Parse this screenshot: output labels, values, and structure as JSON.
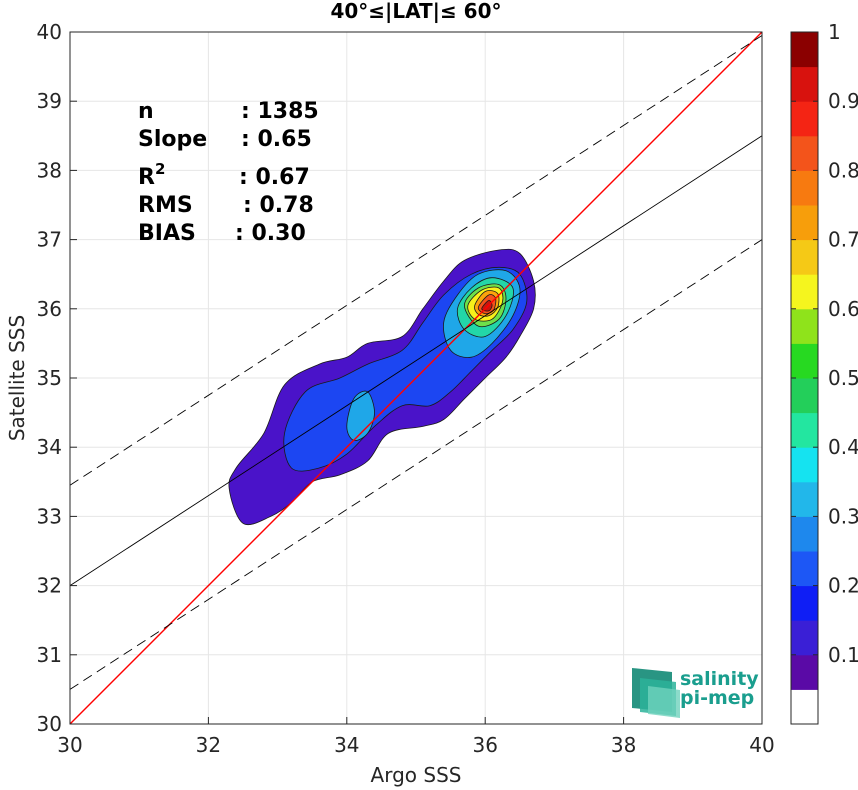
{
  "chart_data": {
    "type": "heatmap",
    "title": "40°≤|LAT|≤ 60°",
    "xlabel": "Argo SSS",
    "ylabel": "Satellite SSS",
    "xlim": [
      30,
      40
    ],
    "ylim": [
      30,
      40
    ],
    "xticks": [
      "30",
      "32",
      "34",
      "36",
      "38",
      "40"
    ],
    "yticks": [
      "30",
      "31",
      "32",
      "33",
      "34",
      "35",
      "36",
      "37",
      "38",
      "39",
      "40"
    ],
    "grid": true,
    "stats": [
      {
        "label": "n",
        "sep": ": ",
        "value": "1385"
      },
      {
        "label": "Slope",
        "sep": ": ",
        "value": "0.65"
      },
      {
        "label": "R",
        "sup": "2",
        "sep": ": ",
        "value": "0.67"
      },
      {
        "label": "RMS",
        "sep": ": ",
        "value": "0.78"
      },
      {
        "label": "BIAS",
        "sep": ": ",
        "value": "0.30"
      }
    ],
    "lines": {
      "one_to_one": {
        "x": [
          30,
          40
        ],
        "y": [
          30,
          40
        ],
        "color": "#ff0000"
      },
      "regression": {
        "x": [
          30,
          40
        ],
        "y": [
          32.0,
          38.5
        ],
        "color": "#000000"
      },
      "upper_bound": {
        "x": [
          30,
          40
        ],
        "y": [
          33.45,
          39.95
        ],
        "color": "#000000",
        "dash": true
      },
      "lower_bound": {
        "x": [
          30,
          40
        ],
        "y": [
          30.5,
          37.0
        ],
        "color": "#000000",
        "dash": true
      }
    },
    "contours": [
      {
        "level": 0.05,
        "color": "#4a13c9",
        "points": [
          [
            32.3,
            33.4
          ],
          [
            32.4,
            33.7
          ],
          [
            32.8,
            34.2
          ],
          [
            33.1,
            34.9
          ],
          [
            33.6,
            35.2
          ],
          [
            34.0,
            35.3
          ],
          [
            34.3,
            35.5
          ],
          [
            34.8,
            35.6
          ],
          [
            35.1,
            36.0
          ],
          [
            35.4,
            36.4
          ],
          [
            35.7,
            36.7
          ],
          [
            36.2,
            36.85
          ],
          [
            36.5,
            36.8
          ],
          [
            36.7,
            36.4
          ],
          [
            36.7,
            36.0
          ],
          [
            36.5,
            35.6
          ],
          [
            36.3,
            35.3
          ],
          [
            36.0,
            35.0
          ],
          [
            35.7,
            34.7
          ],
          [
            35.4,
            34.4
          ],
          [
            35.1,
            34.3
          ],
          [
            34.6,
            34.2
          ],
          [
            34.3,
            33.8
          ],
          [
            33.9,
            33.6
          ],
          [
            33.5,
            33.5
          ],
          [
            33.2,
            33.2
          ],
          [
            32.9,
            33.0
          ],
          [
            32.5,
            32.9
          ]
        ]
      },
      {
        "level": 0.15,
        "color": "#1c46f2",
        "points": [
          [
            33.1,
            34.2
          ],
          [
            33.4,
            34.8
          ],
          [
            33.9,
            35.0
          ],
          [
            34.3,
            35.2
          ],
          [
            34.8,
            35.4
          ],
          [
            35.1,
            35.8
          ],
          [
            35.4,
            36.2
          ],
          [
            35.8,
            36.5
          ],
          [
            36.2,
            36.6
          ],
          [
            36.5,
            36.5
          ],
          [
            36.6,
            36.1
          ],
          [
            36.4,
            35.7
          ],
          [
            36.1,
            35.4
          ],
          [
            35.8,
            35.1
          ],
          [
            35.5,
            34.8
          ],
          [
            35.2,
            34.6
          ],
          [
            34.8,
            34.6
          ],
          [
            34.4,
            34.3
          ],
          [
            34.0,
            33.9
          ],
          [
            33.6,
            33.7
          ],
          [
            33.2,
            33.7
          ]
        ]
      },
      {
        "level": 0.3,
        "color": "#1fa7e8",
        "points": [
          [
            34.0,
            34.3
          ],
          [
            34.1,
            34.7
          ],
          [
            34.3,
            34.8
          ],
          [
            34.4,
            34.5
          ],
          [
            34.3,
            34.2
          ],
          [
            34.1,
            34.1
          ]
        ]
      },
      {
        "level": 0.3,
        "color": "#1fa7e8",
        "points": [
          [
            35.4,
            35.8
          ],
          [
            35.6,
            36.2
          ],
          [
            35.9,
            36.5
          ],
          [
            36.3,
            36.55
          ],
          [
            36.5,
            36.3
          ],
          [
            36.4,
            35.9
          ],
          [
            36.1,
            35.5
          ],
          [
            35.8,
            35.3
          ],
          [
            35.5,
            35.4
          ]
        ]
      },
      {
        "level": 0.4,
        "color": "#23d6a8",
        "points": [
          [
            35.6,
            36.0
          ],
          [
            35.8,
            36.3
          ],
          [
            36.1,
            36.45
          ],
          [
            36.4,
            36.3
          ],
          [
            36.3,
            35.9
          ],
          [
            36.0,
            35.6
          ],
          [
            35.7,
            35.7
          ]
        ]
      },
      {
        "level": 0.55,
        "color": "#6ee04a",
        "points": [
          [
            35.7,
            36.05
          ],
          [
            35.9,
            36.3
          ],
          [
            36.2,
            36.35
          ],
          [
            36.3,
            36.15
          ],
          [
            36.2,
            35.85
          ],
          [
            35.9,
            35.75
          ]
        ]
      },
      {
        "level": 0.65,
        "color": "#f7f01a",
        "points": [
          [
            35.75,
            36.05
          ],
          [
            35.95,
            36.27
          ],
          [
            36.2,
            36.3
          ],
          [
            36.25,
            36.1
          ],
          [
            36.1,
            35.85
          ],
          [
            35.85,
            35.85
          ]
        ]
      },
      {
        "level": 0.75,
        "color": "#fda20c",
        "points": [
          [
            35.85,
            36.05
          ],
          [
            36.0,
            36.25
          ],
          [
            36.18,
            36.22
          ],
          [
            36.18,
            36.02
          ],
          [
            36.05,
            35.9
          ],
          [
            35.9,
            35.92
          ]
        ]
      },
      {
        "level": 0.85,
        "color": "#f4511c",
        "points": [
          [
            35.9,
            36.02
          ],
          [
            36.05,
            36.2
          ],
          [
            36.15,
            36.15
          ],
          [
            36.12,
            35.98
          ],
          [
            36.0,
            35.93
          ]
        ]
      },
      {
        "level": 0.95,
        "color": "#c8150d",
        "points": [
          [
            35.95,
            36.0
          ],
          [
            36.05,
            36.12
          ],
          [
            36.1,
            36.05
          ],
          [
            36.05,
            35.97
          ]
        ]
      }
    ],
    "colorbar": {
      "ticks": [
        "0.1",
        "0.2",
        "0.3",
        "0.4",
        "0.5",
        "0.6",
        "0.7",
        "0.8",
        "0.9",
        "1"
      ],
      "colors": [
        "#ffffff",
        "#5a0aa6",
        "#3a1fd6",
        "#0f1ef5",
        "#1d57f5",
        "#1e88ed",
        "#22b7ea",
        "#15e3f0",
        "#23e6a0",
        "#23cf5a",
        "#27d921",
        "#8fe31b",
        "#f5f51e",
        "#f5c916",
        "#f79e0b",
        "#f77a10",
        "#f3541b",
        "#f42414",
        "#d8120e",
        "#8b0000"
      ]
    }
  },
  "logo": {
    "line1": "salinity",
    "line2": "pi-mep"
  }
}
